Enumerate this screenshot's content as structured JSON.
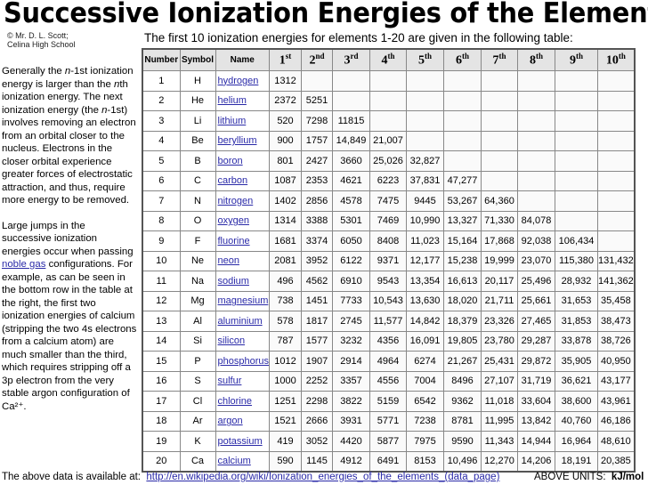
{
  "title": "Successive Ionization Energies of the Elements",
  "credit": [
    "© Mr. D. L. Scott;",
    "Celina High School"
  ],
  "subtitle": "The first 10 ionization energies for elements 1-20 are given in the following table:",
  "sidebar": {
    "p1": "Generally the n-1st ionization energy is larger than the nth ionization energy. The next ionization energy (the n-1st) involves removing an electron from an orbital closer to the nucleus. Electrons in the closer orbital experience greater forces of electrostatic attraction, and thus, require more energy to be removed.",
    "p2_before": "Large jumps in the successive ionization energies occur when passing ",
    "p2_link": "noble gas",
    "p2_after": " configurations. For example, as can be seen in the bottom row in the table at the right, the first two ionization energies of calcium (stripping the two 4s electrons from a calcium atom) are much smaller than the third, which requires stripping off a 3p electron from the very stable argon configuration of Ca²⁺."
  },
  "table": {
    "headers": [
      "Number",
      "Symbol",
      "Name"
    ],
    "ordinals": [
      [
        "1",
        "st"
      ],
      [
        "2",
        "nd"
      ],
      [
        "3",
        "rd"
      ],
      [
        "4",
        "th"
      ],
      [
        "5",
        "th"
      ],
      [
        "6",
        "th"
      ],
      [
        "7",
        "th"
      ],
      [
        "8",
        "th"
      ],
      [
        "9",
        "th"
      ],
      [
        "10",
        "th"
      ]
    ],
    "rows": [
      [
        "1",
        "H",
        "hydrogen",
        [
          "1312"
        ]
      ],
      [
        "2",
        "He",
        "helium",
        [
          "2372",
          "5251"
        ]
      ],
      [
        "3",
        "Li",
        "lithium",
        [
          "520",
          "7298",
          "11815"
        ]
      ],
      [
        "4",
        "Be",
        "beryllium",
        [
          "900",
          "1757",
          "14,849",
          "21,007"
        ]
      ],
      [
        "5",
        "B",
        "boron",
        [
          "801",
          "2427",
          "3660",
          "25,026",
          "32,827"
        ]
      ],
      [
        "6",
        "C",
        "carbon",
        [
          "1087",
          "2353",
          "4621",
          "6223",
          "37,831",
          "47,277"
        ]
      ],
      [
        "7",
        "N",
        "nitrogen",
        [
          "1402",
          "2856",
          "4578",
          "7475",
          "9445",
          "53,267",
          "64,360"
        ]
      ],
      [
        "8",
        "O",
        "oxygen",
        [
          "1314",
          "3388",
          "5301",
          "7469",
          "10,990",
          "13,327",
          "71,330",
          "84,078"
        ]
      ],
      [
        "9",
        "F",
        "fluorine",
        [
          "1681",
          "3374",
          "6050",
          "8408",
          "11,023",
          "15,164",
          "17,868",
          "92,038",
          "106,434"
        ]
      ],
      [
        "10",
        "Ne",
        "neon",
        [
          "2081",
          "3952",
          "6122",
          "9371",
          "12,177",
          "15,238",
          "19,999",
          "23,070",
          "115,380",
          "131,432"
        ]
      ],
      [
        "11",
        "Na",
        "sodium",
        [
          "496",
          "4562",
          "6910",
          "9543",
          "13,354",
          "16,613",
          "20,117",
          "25,496",
          "28,932",
          "141,362"
        ]
      ],
      [
        "12",
        "Mg",
        "magnesium",
        [
          "738",
          "1451",
          "7733",
          "10,543",
          "13,630",
          "18,020",
          "21,711",
          "25,661",
          "31,653",
          "35,458"
        ]
      ],
      [
        "13",
        "Al",
        "aluminium",
        [
          "578",
          "1817",
          "2745",
          "11,577",
          "14,842",
          "18,379",
          "23,326",
          "27,465",
          "31,853",
          "38,473"
        ]
      ],
      [
        "14",
        "Si",
        "silicon",
        [
          "787",
          "1577",
          "3232",
          "4356",
          "16,091",
          "19,805",
          "23,780",
          "29,287",
          "33,878",
          "38,726"
        ]
      ],
      [
        "15",
        "P",
        "phosphorus",
        [
          "1012",
          "1907",
          "2914",
          "4964",
          "6274",
          "21,267",
          "25,431",
          "29,872",
          "35,905",
          "40,950"
        ]
      ],
      [
        "16",
        "S",
        "sulfur",
        [
          "1000",
          "2252",
          "3357",
          "4556",
          "7004",
          "8496",
          "27,107",
          "31,719",
          "36,621",
          "43,177"
        ]
      ],
      [
        "17",
        "Cl",
        "chlorine",
        [
          "1251",
          "2298",
          "3822",
          "5159",
          "6542",
          "9362",
          "11,018",
          "33,604",
          "38,600",
          "43,961"
        ]
      ],
      [
        "18",
        "Ar",
        "argon",
        [
          "1521",
          "2666",
          "3931",
          "5771",
          "7238",
          "8781",
          "11,995",
          "13,842",
          "40,760",
          "46,186"
        ]
      ],
      [
        "19",
        "K",
        "potassium",
        [
          "419",
          "3052",
          "4420",
          "5877",
          "7975",
          "9590",
          "11,343",
          "14,944",
          "16,964",
          "48,610"
        ]
      ],
      [
        "20",
        "Ca",
        "calcium",
        [
          "590",
          "1145",
          "4912",
          "6491",
          "8153",
          "10,496",
          "12,270",
          "14,206",
          "18,191",
          "20,385"
        ]
      ]
    ]
  },
  "footer": {
    "label": "The above data is available at:",
    "link": "http://en.wikipedia.org/wiki/Ionization_energies_of_the_elements_(data_page)",
    "units_label": "ABOVE UNITS:",
    "units": "kJ/mol"
  },
  "colors": {
    "link": "#2a2aa8",
    "header_bg": "#e4e4e4"
  }
}
